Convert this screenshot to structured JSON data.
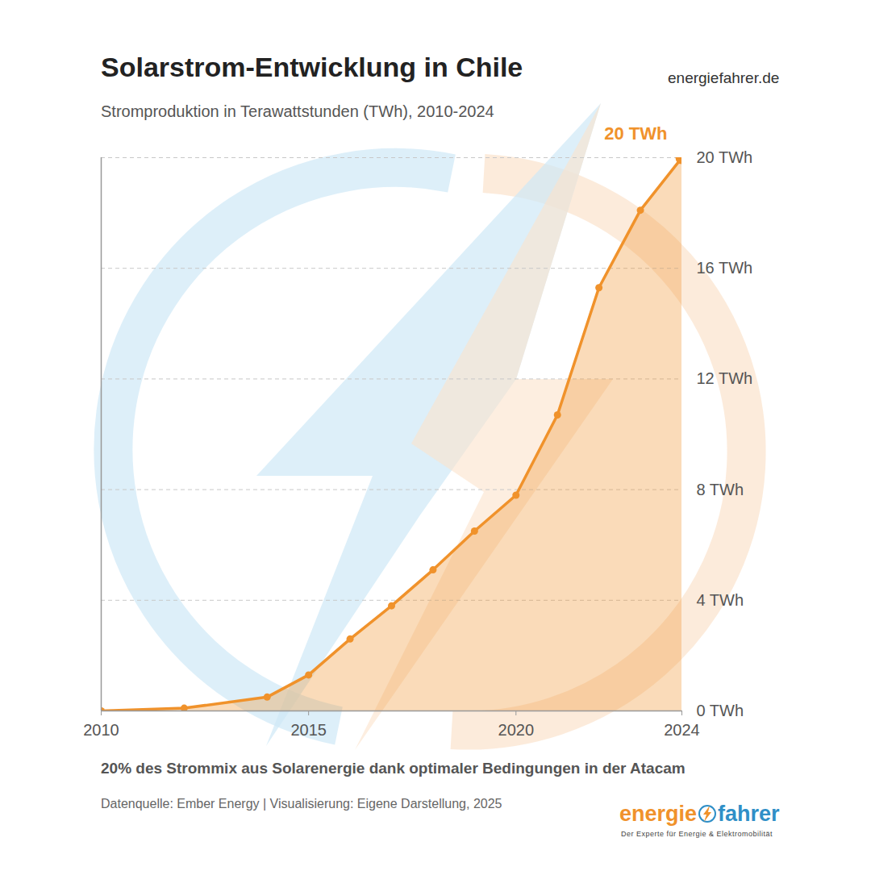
{
  "chart_data": {
    "type": "area",
    "title": "Solarstrom-Entwicklung in Chile",
    "subtitle": "Stromproduktion in Terawattstunden (TWh), 2010-2024",
    "x": [
      2010,
      2012,
      2014,
      2015,
      2016,
      2017,
      2018,
      2019,
      2020,
      2021,
      2022,
      2023,
      2024
    ],
    "values": [
      0.0,
      0.1,
      0.5,
      1.3,
      2.6,
      3.8,
      5.1,
      6.5,
      7.8,
      10.7,
      15.3,
      18.1,
      20
    ],
    "color": "#f0922b",
    "marker": "circle",
    "xlim": [
      2010,
      2024
    ],
    "xticks": [
      2010,
      2015,
      2020,
      2024
    ],
    "ylim": [
      0,
      20
    ],
    "yticks": [
      {
        "value": 0,
        "label": "0 TWh"
      },
      {
        "value": 4,
        "label": "4 TWh"
      },
      {
        "value": 8,
        "label": "8 TWh"
      },
      {
        "value": 12,
        "label": "12 TWh"
      },
      {
        "value": 16,
        "label": "16 TWh"
      },
      {
        "value": 20,
        "label": "20 TWh"
      }
    ],
    "grid": true,
    "annotations": [
      {
        "text": "20 TWh",
        "x": 2024,
        "y": 20
      }
    ],
    "caption": "20% des Strommix aus Solarenergie dank optimaler Bedingungen in der Atacam",
    "source": "Datenquelle: Ember Energy | Visualisierung: Eigene Darstellung, 2025",
    "watermark": "energiefahrer.de",
    "logo": [
      "energie",
      "fahrer"
    ],
    "tagline": "Der Experte für Energie & Elektromobilität"
  }
}
